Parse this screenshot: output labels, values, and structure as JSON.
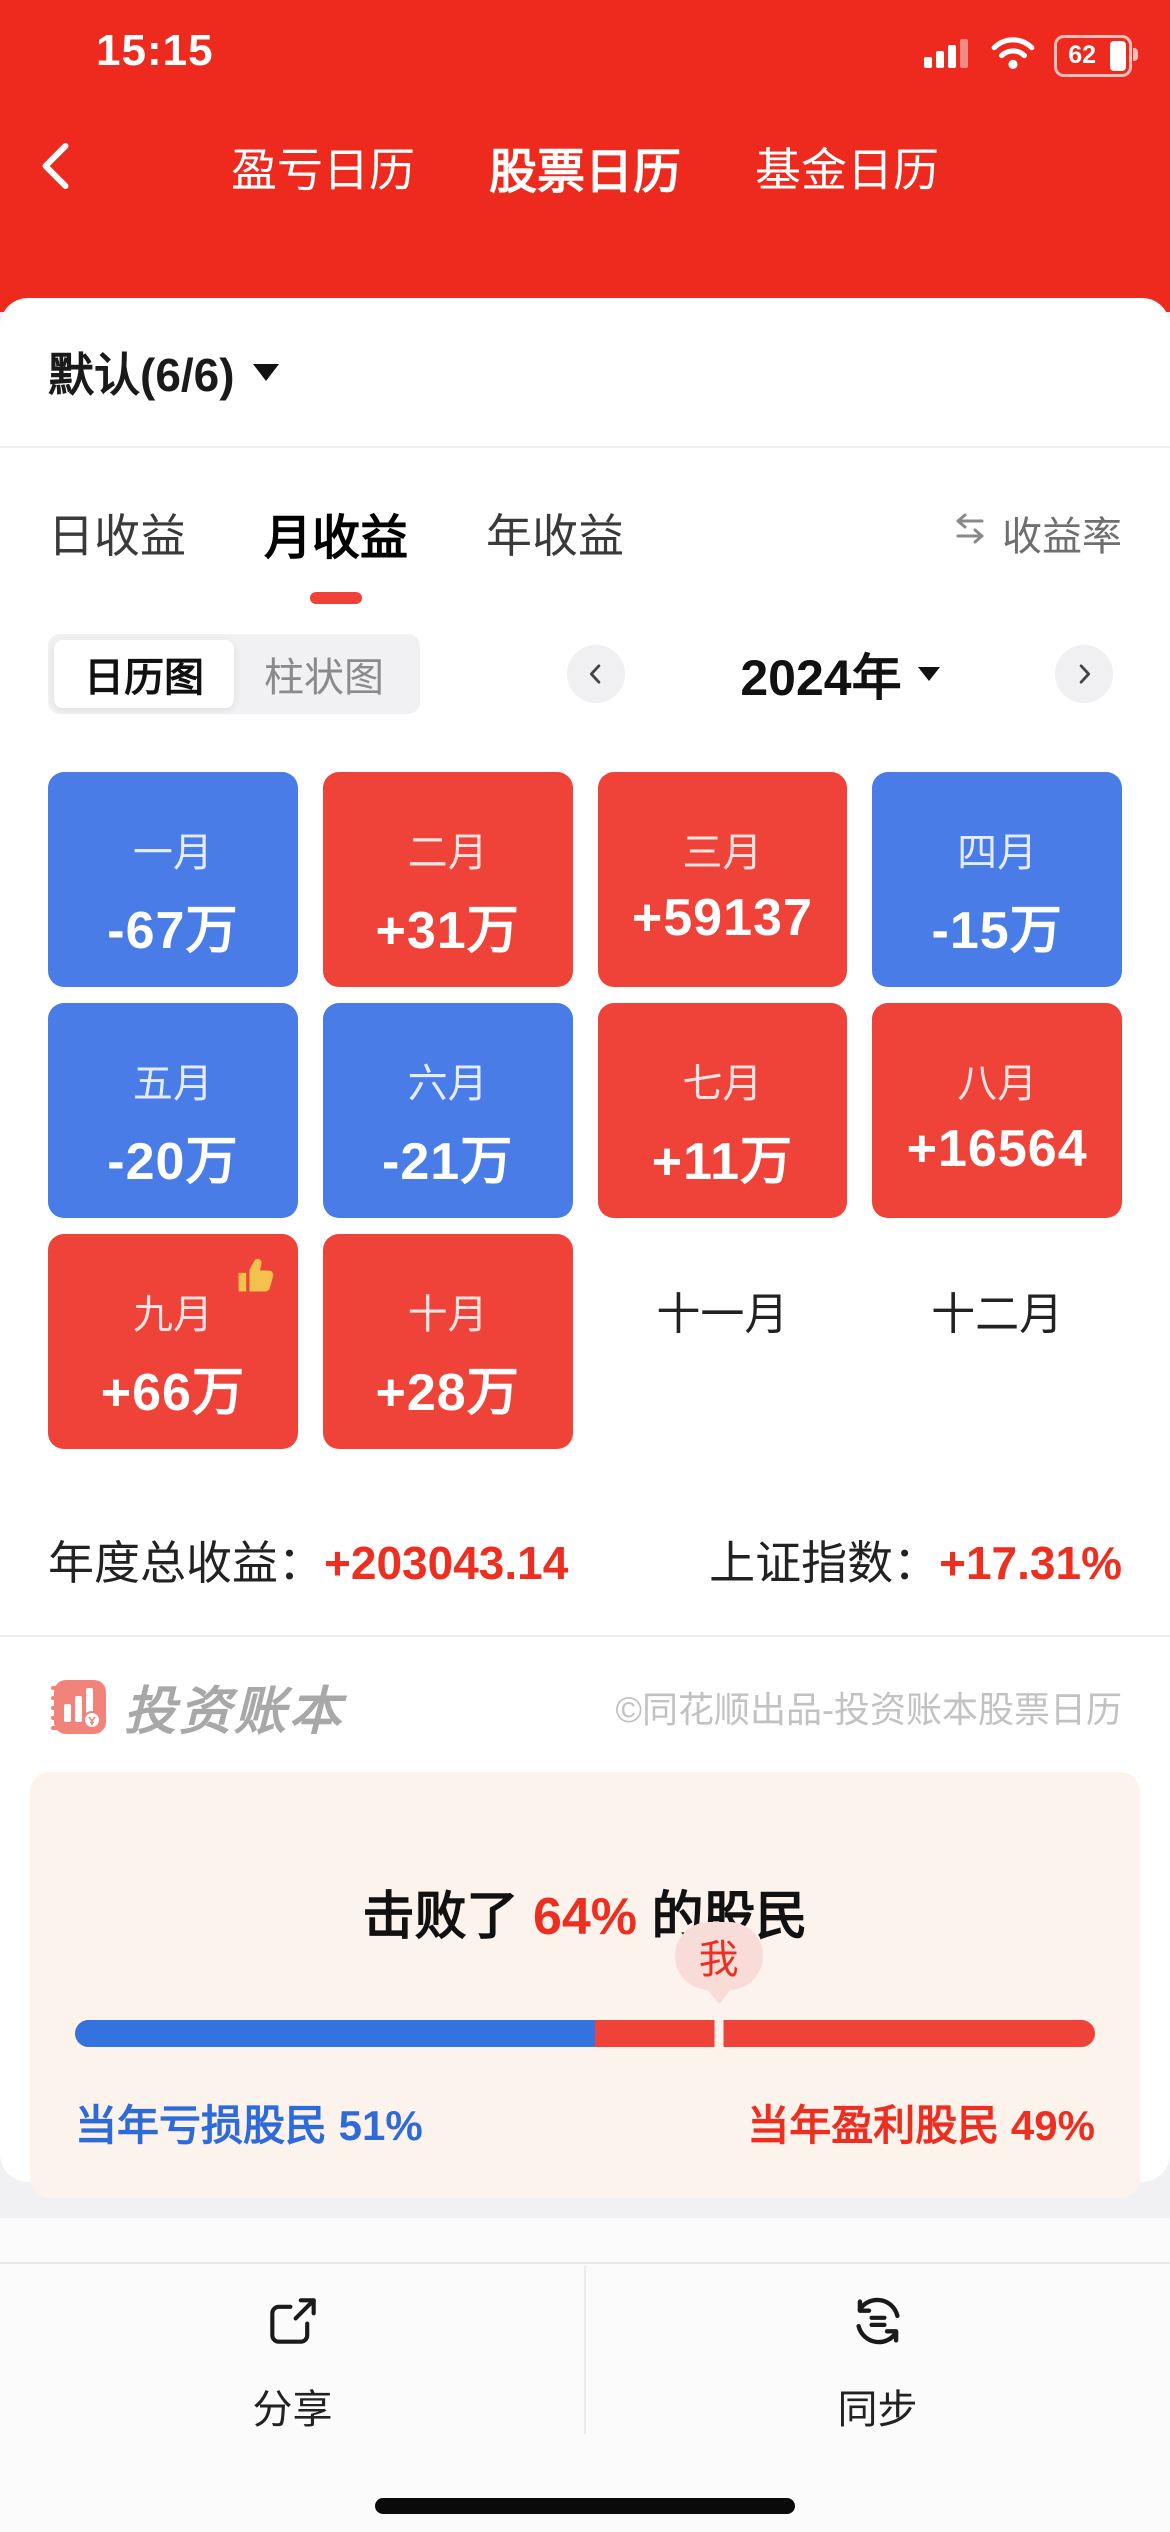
{
  "status_bar": {
    "time": "15:15",
    "battery": "62"
  },
  "nav": {
    "tabs": [
      {
        "label": "盈亏日历",
        "active": false
      },
      {
        "label": "股票日历",
        "active": true
      },
      {
        "label": "基金日历",
        "active": false
      }
    ]
  },
  "account_selector": {
    "label": "默认(6/6)"
  },
  "period_tabs": {
    "items": [
      {
        "label": "日收益",
        "active": false
      },
      {
        "label": "月收益",
        "active": true
      },
      {
        "label": "年收益",
        "active": false
      }
    ],
    "rate_toggle": "收益率"
  },
  "view_toggle": {
    "options": [
      {
        "label": "日历图",
        "active": true
      },
      {
        "label": "柱状图",
        "active": false
      }
    ]
  },
  "year_nav": {
    "year": "2024年"
  },
  "calendar": {
    "months": [
      {
        "label": "一月",
        "value": "-67万",
        "kind": "loss"
      },
      {
        "label": "二月",
        "value": "+31万",
        "kind": "profit"
      },
      {
        "label": "三月",
        "value": "+59137",
        "kind": "profit"
      },
      {
        "label": "四月",
        "value": "-15万",
        "kind": "loss"
      },
      {
        "label": "五月",
        "value": "-20万",
        "kind": "loss"
      },
      {
        "label": "六月",
        "value": "-21万",
        "kind": "loss"
      },
      {
        "label": "七月",
        "value": "+11万",
        "kind": "profit"
      },
      {
        "label": "八月",
        "value": "+16564",
        "kind": "profit"
      },
      {
        "label": "九月",
        "value": "+66万",
        "kind": "profit",
        "badge": true
      },
      {
        "label": "十月",
        "value": "+28万",
        "kind": "profit"
      },
      {
        "label": "十一月",
        "value": "",
        "kind": "empty"
      },
      {
        "label": "十二月",
        "value": "",
        "kind": "empty"
      }
    ]
  },
  "summary": {
    "total_label": "年度总收益：",
    "total_value": "+203043.14",
    "index_label": "上证指数：",
    "index_value": "+17.31%"
  },
  "watermark": {
    "brand": "投资账本",
    "copyright": "©同花顺出品-投资账本股票日历"
  },
  "beat_section": {
    "prefix": "击败了 ",
    "percent": "64%",
    "suffix": " 的股民",
    "me_label": "我",
    "loss_label": "当年亏损股民 51%",
    "profit_label": "当年盈利股民 49%",
    "loss_pct": 51,
    "profit_pct": 49,
    "marker_pct": 63.1
  },
  "toolbar": {
    "share_label": "分享",
    "sync_label": "同步"
  },
  "colors": {
    "header_red": "#ED2A1D",
    "card_red": "#EF4238",
    "card_blue": "#4A7CE8",
    "text_red": "#ED2F22"
  }
}
